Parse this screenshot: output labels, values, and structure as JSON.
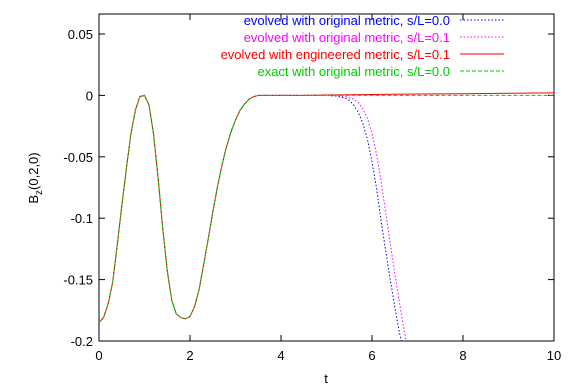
{
  "chart_data": {
    "type": "line",
    "xlabel": "t",
    "ylabel": "B",
    "ylabel_subscript": "z",
    "ylabel_suffix": "(0,2,0)",
    "xlim": [
      0,
      10
    ],
    "ylim": [
      -0.2,
      0.07
    ],
    "xticks": [
      0,
      2,
      4,
      6,
      8,
      10
    ],
    "xtick_labels": [
      "0",
      "2",
      "4",
      "6",
      "8",
      "10"
    ],
    "yticks": [
      0.05,
      0,
      -0.05,
      -0.1,
      -0.15,
      -0.2
    ],
    "ytick_labels": [
      "0.05",
      "0",
      "-0.05",
      "-0.1",
      "-0.15",
      "-0.2"
    ],
    "grid": false,
    "legend_position": "top-right",
    "series": [
      {
        "name": "evolved with original metric, s/L=0.0",
        "color": "#0000ff",
        "style": "dotted",
        "x": [
          0.0,
          0.1,
          0.2,
          0.3,
          0.4,
          0.5,
          0.6,
          0.7,
          0.8,
          0.9,
          1.0,
          1.1,
          1.2,
          1.3,
          1.4,
          1.5,
          1.6,
          1.7,
          1.8,
          1.9,
          2.0,
          2.1,
          2.2,
          2.3,
          2.4,
          2.5,
          2.6,
          2.7,
          2.8,
          2.9,
          3.0,
          3.1,
          3.2,
          3.3,
          3.4,
          3.5,
          3.6,
          3.7,
          3.8,
          3.9,
          4.0,
          4.2,
          4.4,
          4.6,
          4.8,
          5.0,
          5.2,
          5.4,
          5.5,
          5.6,
          5.7,
          5.8,
          5.9,
          6.0,
          6.1,
          6.2,
          6.3,
          6.4,
          6.5,
          6.6,
          6.65
        ],
        "y": [
          -0.185,
          -0.181,
          -0.17,
          -0.152,
          -0.122,
          -0.09,
          -0.06,
          -0.032,
          -0.012,
          -0.001,
          0.0,
          -0.008,
          -0.032,
          -0.068,
          -0.108,
          -0.143,
          -0.167,
          -0.178,
          -0.181,
          -0.182,
          -0.18,
          -0.172,
          -0.158,
          -0.138,
          -0.117,
          -0.095,
          -0.075,
          -0.057,
          -0.042,
          -0.03,
          -0.02,
          -0.012,
          -0.007,
          -0.003,
          -0.001,
          0.0,
          0.0,
          0.0,
          0.0,
          0.0,
          0.0,
          0.0,
          0.0,
          0.0,
          0.0,
          0.0,
          -0.0005,
          -0.002,
          -0.004,
          -0.008,
          -0.014,
          -0.023,
          -0.036,
          -0.054,
          -0.076,
          -0.102,
          -0.126,
          -0.15,
          -0.172,
          -0.193,
          -0.2
        ]
      },
      {
        "name": "evolved with original metric, s/L=0.1",
        "color": "#ff00ff",
        "style": "dotted",
        "x": [
          0.0,
          0.1,
          0.2,
          0.3,
          0.4,
          0.5,
          0.6,
          0.7,
          0.8,
          0.9,
          1.0,
          1.1,
          1.2,
          1.3,
          1.4,
          1.5,
          1.6,
          1.7,
          1.8,
          1.9,
          2.0,
          2.1,
          2.2,
          2.3,
          2.4,
          2.5,
          2.6,
          2.7,
          2.8,
          2.9,
          3.0,
          3.1,
          3.2,
          3.3,
          3.4,
          3.5,
          3.6,
          3.7,
          3.8,
          3.9,
          4.0,
          4.2,
          4.4,
          4.6,
          4.8,
          5.0,
          5.2,
          5.4,
          5.6,
          5.7,
          5.8,
          5.9,
          6.0,
          6.1,
          6.2,
          6.3,
          6.4,
          6.5,
          6.6,
          6.7,
          6.75
        ],
        "y": [
          -0.185,
          -0.181,
          -0.17,
          -0.152,
          -0.122,
          -0.09,
          -0.06,
          -0.032,
          -0.012,
          -0.001,
          0.0,
          -0.008,
          -0.032,
          -0.068,
          -0.108,
          -0.143,
          -0.167,
          -0.178,
          -0.181,
          -0.182,
          -0.18,
          -0.172,
          -0.158,
          -0.138,
          -0.117,
          -0.095,
          -0.075,
          -0.057,
          -0.042,
          -0.03,
          -0.02,
          -0.012,
          -0.007,
          -0.003,
          -0.001,
          0.0,
          0.0,
          0.0,
          0.0,
          0.0,
          0.0,
          0.0,
          0.0,
          0.0,
          0.0,
          0.0,
          0.0,
          -0.0008,
          -0.003,
          -0.006,
          -0.011,
          -0.019,
          -0.031,
          -0.048,
          -0.07,
          -0.095,
          -0.12,
          -0.145,
          -0.168,
          -0.19,
          -0.2
        ]
      },
      {
        "name": "evolved with engineered metric, s/L=0.1",
        "color": "#ff0000",
        "style": "solid",
        "x": [
          0.0,
          0.1,
          0.2,
          0.3,
          0.4,
          0.5,
          0.6,
          0.7,
          0.8,
          0.9,
          1.0,
          1.1,
          1.2,
          1.3,
          1.4,
          1.5,
          1.6,
          1.7,
          1.8,
          1.9,
          2.0,
          2.1,
          2.2,
          2.3,
          2.4,
          2.5,
          2.6,
          2.7,
          2.8,
          2.9,
          3.0,
          3.1,
          3.2,
          3.3,
          3.4,
          3.5,
          3.6,
          3.7,
          3.8,
          3.9,
          4.0,
          4.5,
          5.0,
          6.0,
          7.0,
          8.0,
          9.0,
          10.0
        ],
        "y": [
          -0.185,
          -0.181,
          -0.17,
          -0.152,
          -0.122,
          -0.09,
          -0.06,
          -0.032,
          -0.012,
          -0.001,
          0.0,
          -0.008,
          -0.032,
          -0.068,
          -0.108,
          -0.143,
          -0.167,
          -0.178,
          -0.181,
          -0.182,
          -0.18,
          -0.172,
          -0.158,
          -0.138,
          -0.117,
          -0.095,
          -0.075,
          -0.057,
          -0.042,
          -0.03,
          -0.02,
          -0.012,
          -0.007,
          -0.003,
          -0.001,
          0.0,
          0.0,
          0.0,
          0.0,
          0.0,
          0.0,
          0.0,
          0.0003,
          0.0007,
          0.0011,
          0.0014,
          0.0017,
          0.002
        ]
      },
      {
        "name": "exact with original metric, s/L=0.0",
        "color": "#00cc00",
        "style": "dashed",
        "x": [
          0.0,
          0.1,
          0.2,
          0.3,
          0.4,
          0.5,
          0.6,
          0.7,
          0.8,
          0.9,
          1.0,
          1.1,
          1.2,
          1.3,
          1.4,
          1.5,
          1.6,
          1.7,
          1.8,
          1.9,
          2.0,
          2.1,
          2.2,
          2.3,
          2.4,
          2.5,
          2.6,
          2.7,
          2.8,
          2.9,
          3.0,
          3.1,
          3.2,
          3.3,
          3.4,
          3.5,
          3.6,
          3.7,
          3.8,
          3.9,
          4.0,
          5.0,
          6.0,
          7.0,
          8.0,
          9.0,
          10.0
        ],
        "y": [
          -0.185,
          -0.181,
          -0.17,
          -0.152,
          -0.122,
          -0.09,
          -0.06,
          -0.032,
          -0.012,
          -0.001,
          0.0,
          -0.008,
          -0.032,
          -0.068,
          -0.108,
          -0.143,
          -0.167,
          -0.178,
          -0.181,
          -0.182,
          -0.18,
          -0.172,
          -0.158,
          -0.138,
          -0.117,
          -0.095,
          -0.075,
          -0.057,
          -0.042,
          -0.03,
          -0.02,
          -0.012,
          -0.007,
          -0.003,
          -0.001,
          0.0,
          0.0,
          0.0,
          0.0,
          0.0,
          0.0,
          0.0,
          0.0,
          0.0,
          0.0,
          0.0,
          0.0
        ]
      }
    ]
  }
}
